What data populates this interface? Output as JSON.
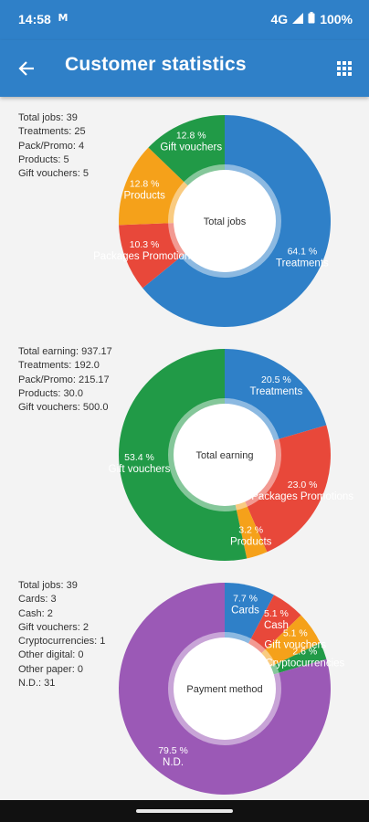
{
  "status_bar": {
    "time": "14:58",
    "notification_icon": "M",
    "network": "4G",
    "battery": "100%"
  },
  "app_bar": {
    "title": "Customer statistics",
    "back_icon": "arrow-left-icon",
    "menu_icon": "grid-icon"
  },
  "stats": [
    {
      "lines": [
        "Total jobs: 39",
        "Treatments: 25",
        "Pack/Promo: 4",
        "Products: 5",
        "Gift vouchers: 5"
      ]
    },
    {
      "lines": [
        "Total earning: 937.17",
        "Treatments: 192.0",
        "Pack/Promo: 215.17",
        "Products: 30.0",
        "Gift vouchers: 500.0"
      ]
    },
    {
      "lines": [
        "Total jobs: 39",
        "Cards: 3",
        "Cash: 2",
        "Gift vouchers: 2",
        "Cryptocurrencies: 1",
        "Other digital: 0",
        "Other paper: 0",
        "N.D.: 31"
      ]
    }
  ],
  "chart_data": [
    {
      "type": "pie",
      "center_label": "Total jobs",
      "slices": [
        {
          "label": "Treatments",
          "percent_label": "64.1 %",
          "value": 64.1,
          "color": "#2f80c8"
        },
        {
          "label": "Packages Promotions",
          "percent_label": "10.3 %",
          "value": 10.3,
          "color": "#e8483a"
        },
        {
          "label": "Products",
          "percent_label": "12.8 %",
          "value": 12.8,
          "color": "#f5a11a"
        },
        {
          "label": "Gift vouchers",
          "percent_label": "12.8 %",
          "value": 12.8,
          "color": "#219a47"
        }
      ]
    },
    {
      "type": "pie",
      "center_label": "Total earning",
      "slices": [
        {
          "label": "Treatments",
          "percent_label": "20.5 %",
          "value": 20.5,
          "color": "#2f80c8"
        },
        {
          "label": "Packages Promotions",
          "percent_label": "23.0 %",
          "value": 23.0,
          "color": "#e8483a"
        },
        {
          "label": "Products",
          "percent_label": "3.2 %",
          "value": 3.2,
          "color": "#f5a11a"
        },
        {
          "label": "Gift vouchers",
          "percent_label": "53.4 %",
          "value": 53.4,
          "color": "#219a47"
        }
      ]
    },
    {
      "type": "pie",
      "center_label": "Payment method",
      "slices": [
        {
          "label": "Cards",
          "percent_label": "7.7 %",
          "value": 7.7,
          "color": "#2f80c8"
        },
        {
          "label": "Cash",
          "percent_label": "5.1 %",
          "value": 5.1,
          "color": "#e8483a"
        },
        {
          "label": "Gift vouchers",
          "percent_label": "5.1 %",
          "value": 5.1,
          "color": "#f5a11a"
        },
        {
          "label": "Cryptocurrencies",
          "percent_label": "2.6 %",
          "value": 2.6,
          "color": "#219a47"
        },
        {
          "label": "N.D.",
          "percent_label": "79.5 %",
          "value": 79.5,
          "color": "#9b59b6"
        }
      ]
    }
  ]
}
